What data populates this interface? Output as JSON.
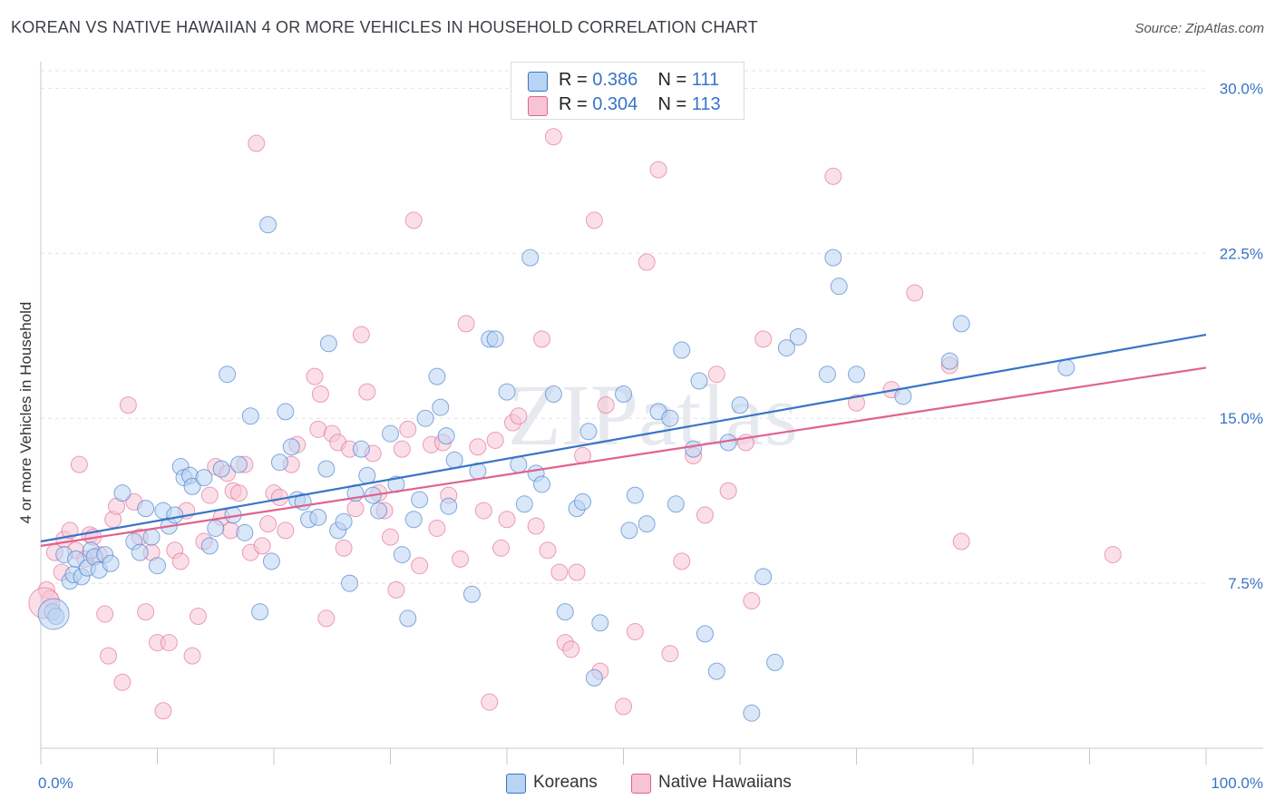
{
  "header": {
    "title": "KOREAN VS NATIVE HAWAIIAN 4 OR MORE VEHICLES IN HOUSEHOLD CORRELATION CHART",
    "source": "Source: ZipAtlas.com"
  },
  "watermark": "ZIPatlas",
  "colors": {
    "korean": "#3874c6",
    "korean_fill": "#b9d3f3",
    "hawaiian": "#e0628e",
    "hawaiian_fill": "#f7c4d5",
    "axis_label": "#3874c6",
    "grid": "#dfe3e8"
  },
  "stats_legend": {
    "rows": [
      {
        "r_label": "R =",
        "r_value": "0.386",
        "n_label": "N =",
        "n_value": "111"
      },
      {
        "r_label": "R =",
        "r_value": "0.304",
        "n_label": "N =",
        "n_value": "113"
      }
    ]
  },
  "bottom_legend": {
    "korean": "Koreans",
    "hawaiian": "Native Hawaiians"
  },
  "chart_data": {
    "type": "scatter",
    "title": "KOREAN VS NATIVE HAWAIIAN 4 OR MORE VEHICLES IN HOUSEHOLD CORRELATION CHART",
    "xlabel": "",
    "ylabel": "4 or more Vehicles in Household",
    "xlim": [
      0,
      100
    ],
    "ylim": [
      0,
      30.8
    ],
    "x_tick_labels": [
      "0.0%",
      "100.0%"
    ],
    "y_ticks": [
      7.5,
      15.0,
      22.5,
      30.0
    ],
    "y_tick_labels": [
      "7.5%",
      "15.0%",
      "22.5%",
      "30.0%"
    ],
    "grid": true,
    "legend_position": "top-center",
    "series": [
      {
        "name": "Koreans",
        "r": 0.386,
        "n": 111,
        "trend": {
          "x": [
            0,
            100
          ],
          "y": [
            9.4,
            18.8
          ]
        },
        "points": [
          [
            1.0,
            6.2
          ],
          [
            1.3,
            6.0
          ],
          [
            2.0,
            8.8
          ],
          [
            2.5,
            7.6
          ],
          [
            2.8,
            7.9
          ],
          [
            3.0,
            8.6
          ],
          [
            3.5,
            7.8
          ],
          [
            4.0,
            8.2
          ],
          [
            4.3,
            9.0
          ],
          [
            4.6,
            8.7
          ],
          [
            5.0,
            8.1
          ],
          [
            5.5,
            8.8
          ],
          [
            6.0,
            8.4
          ],
          [
            7.0,
            11.6
          ],
          [
            8.0,
            9.4
          ],
          [
            8.5,
            8.9
          ],
          [
            9.0,
            10.9
          ],
          [
            9.5,
            9.6
          ],
          [
            10.0,
            8.3
          ],
          [
            10.5,
            10.8
          ],
          [
            11.0,
            10.1
          ],
          [
            11.5,
            10.6
          ],
          [
            12.0,
            12.8
          ],
          [
            12.3,
            12.3
          ],
          [
            12.8,
            12.4
          ],
          [
            13.0,
            11.9
          ],
          [
            14.0,
            12.3
          ],
          [
            14.5,
            9.2
          ],
          [
            15.0,
            10.0
          ],
          [
            15.5,
            12.7
          ],
          [
            16.0,
            17.0
          ],
          [
            16.5,
            10.6
          ],
          [
            17.0,
            12.9
          ],
          [
            17.5,
            9.8
          ],
          [
            18.0,
            15.1
          ],
          [
            18.8,
            6.2
          ],
          [
            19.5,
            23.8
          ],
          [
            19.8,
            8.5
          ],
          [
            20.5,
            13.0
          ],
          [
            21.0,
            15.3
          ],
          [
            21.5,
            13.7
          ],
          [
            22.0,
            11.3
          ],
          [
            22.5,
            11.2
          ],
          [
            23.0,
            10.4
          ],
          [
            23.8,
            10.5
          ],
          [
            24.5,
            12.7
          ],
          [
            24.7,
            18.4
          ],
          [
            25.5,
            9.9
          ],
          [
            26.0,
            10.3
          ],
          [
            26.5,
            7.5
          ],
          [
            27.0,
            11.6
          ],
          [
            27.5,
            13.6
          ],
          [
            28.0,
            12.4
          ],
          [
            28.5,
            11.5
          ],
          [
            29.0,
            10.8
          ],
          [
            30.0,
            14.3
          ],
          [
            30.5,
            12.0
          ],
          [
            31.0,
            8.8
          ],
          [
            31.5,
            5.9
          ],
          [
            32.0,
            10.4
          ],
          [
            32.5,
            11.3
          ],
          [
            33.0,
            15.0
          ],
          [
            34.0,
            16.9
          ],
          [
            34.3,
            15.5
          ],
          [
            34.8,
            14.2
          ],
          [
            35.0,
            11.0
          ],
          [
            35.5,
            13.1
          ],
          [
            37.0,
            7.0
          ],
          [
            37.5,
            12.6
          ],
          [
            38.5,
            18.6
          ],
          [
            39.0,
            18.6
          ],
          [
            40.0,
            16.2
          ],
          [
            41.0,
            12.9
          ],
          [
            41.5,
            11.1
          ],
          [
            42.0,
            22.3
          ],
          [
            42.5,
            12.5
          ],
          [
            43.0,
            12.0
          ],
          [
            44.0,
            16.1
          ],
          [
            45.0,
            6.2
          ],
          [
            46.0,
            10.9
          ],
          [
            46.5,
            11.2
          ],
          [
            47.0,
            14.4
          ],
          [
            47.5,
            3.2
          ],
          [
            48.0,
            5.7
          ],
          [
            50.0,
            16.1
          ],
          [
            50.5,
            9.9
          ],
          [
            51.0,
            11.5
          ],
          [
            52.0,
            10.2
          ],
          [
            53.0,
            15.3
          ],
          [
            54.0,
            15.0
          ],
          [
            54.5,
            11.1
          ],
          [
            55.0,
            18.1
          ],
          [
            56.0,
            13.6
          ],
          [
            56.5,
            16.7
          ],
          [
            57.0,
            5.2
          ],
          [
            58.0,
            3.5
          ],
          [
            59.0,
            13.9
          ],
          [
            60.0,
            15.6
          ],
          [
            61.0,
            1.6
          ],
          [
            62.0,
            7.8
          ],
          [
            63.0,
            3.9
          ],
          [
            64.0,
            18.2
          ],
          [
            65.0,
            18.7
          ],
          [
            67.5,
            17.0
          ],
          [
            68.0,
            22.3
          ],
          [
            68.5,
            21.0
          ],
          [
            70.0,
            17.0
          ],
          [
            74.0,
            16.0
          ],
          [
            78.0,
            17.6
          ],
          [
            79.0,
            19.3
          ],
          [
            88.0,
            17.3
          ]
        ],
        "large_points": [
          [
            1.1,
            6.1
          ]
        ]
      },
      {
        "name": "Native Hawaiians",
        "r": 0.304,
        "n": 113,
        "trend": {
          "x": [
            0,
            100
          ],
          "y": [
            9.2,
            17.3
          ]
        },
        "points": [
          [
            0.5,
            7.2
          ],
          [
            0.8,
            6.8
          ],
          [
            1.2,
            8.9
          ],
          [
            1.8,
            8.0
          ],
          [
            2.0,
            9.5
          ],
          [
            2.5,
            9.9
          ],
          [
            3.0,
            9.0
          ],
          [
            3.3,
            12.9
          ],
          [
            3.8,
            8.6
          ],
          [
            4.2,
            9.7
          ],
          [
            4.5,
            9.6
          ],
          [
            5.0,
            8.8
          ],
          [
            5.5,
            6.1
          ],
          [
            5.8,
            4.2
          ],
          [
            6.2,
            10.4
          ],
          [
            6.5,
            11.0
          ],
          [
            7.0,
            3.0
          ],
          [
            7.5,
            15.6
          ],
          [
            8.0,
            11.2
          ],
          [
            8.5,
            9.6
          ],
          [
            9.0,
            6.2
          ],
          [
            9.5,
            8.9
          ],
          [
            10.0,
            4.8
          ],
          [
            10.5,
            1.7
          ],
          [
            11.0,
            4.8
          ],
          [
            11.5,
            9.0
          ],
          [
            12.0,
            8.5
          ],
          [
            12.5,
            10.8
          ],
          [
            13.0,
            4.2
          ],
          [
            13.5,
            6.0
          ],
          [
            14.0,
            9.4
          ],
          [
            14.5,
            11.5
          ],
          [
            15.0,
            12.8
          ],
          [
            15.5,
            10.5
          ],
          [
            16.0,
            12.5
          ],
          [
            16.3,
            9.9
          ],
          [
            16.5,
            11.7
          ],
          [
            17.0,
            11.6
          ],
          [
            17.5,
            12.9
          ],
          [
            18.0,
            8.9
          ],
          [
            18.5,
            27.5
          ],
          [
            19.0,
            9.2
          ],
          [
            19.5,
            10.2
          ],
          [
            20.0,
            11.6
          ],
          [
            20.5,
            11.4
          ],
          [
            21.0,
            9.9
          ],
          [
            21.5,
            12.9
          ],
          [
            22.0,
            13.8
          ],
          [
            23.5,
            16.9
          ],
          [
            23.8,
            14.5
          ],
          [
            24.0,
            16.1
          ],
          [
            24.5,
            5.9
          ],
          [
            25.0,
            14.3
          ],
          [
            25.5,
            13.9
          ],
          [
            26.0,
            9.1
          ],
          [
            26.5,
            13.6
          ],
          [
            27.0,
            10.9
          ],
          [
            27.5,
            18.8
          ],
          [
            28.0,
            16.2
          ],
          [
            28.5,
            13.4
          ],
          [
            29.0,
            11.6
          ],
          [
            29.5,
            10.8
          ],
          [
            30.0,
            9.6
          ],
          [
            30.5,
            7.2
          ],
          [
            31.0,
            13.6
          ],
          [
            31.5,
            14.5
          ],
          [
            32.0,
            24.0
          ],
          [
            32.5,
            8.3
          ],
          [
            33.5,
            13.8
          ],
          [
            34.0,
            10.0
          ],
          [
            34.5,
            13.9
          ],
          [
            35.0,
            11.5
          ],
          [
            36.0,
            8.6
          ],
          [
            36.5,
            19.3
          ],
          [
            37.5,
            13.7
          ],
          [
            38.0,
            10.8
          ],
          [
            38.5,
            2.1
          ],
          [
            39.0,
            14.0
          ],
          [
            39.5,
            9.1
          ],
          [
            40.0,
            10.4
          ],
          [
            40.5,
            14.8
          ],
          [
            41.0,
            15.1
          ],
          [
            42.5,
            10.1
          ],
          [
            43.0,
            18.6
          ],
          [
            43.5,
            9.0
          ],
          [
            44.0,
            27.8
          ],
          [
            44.5,
            8.0
          ],
          [
            45.0,
            4.8
          ],
          [
            45.5,
            4.5
          ],
          [
            46.0,
            8.0
          ],
          [
            46.5,
            13.3
          ],
          [
            47.5,
            24.0
          ],
          [
            48.0,
            3.5
          ],
          [
            48.5,
            15.6
          ],
          [
            50.0,
            1.9
          ],
          [
            51.0,
            5.3
          ],
          [
            52.0,
            22.1
          ],
          [
            53.0,
            26.3
          ],
          [
            54.0,
            4.3
          ],
          [
            55.0,
            8.5
          ],
          [
            56.0,
            13.3
          ],
          [
            57.0,
            10.6
          ],
          [
            58.0,
            17.0
          ],
          [
            59.0,
            11.7
          ],
          [
            60.5,
            13.9
          ],
          [
            61.0,
            6.7
          ],
          [
            62.0,
            18.6
          ],
          [
            68.0,
            26.0
          ],
          [
            70.0,
            15.7
          ],
          [
            73.0,
            16.3
          ],
          [
            75.0,
            20.7
          ],
          [
            78.0,
            17.4
          ],
          [
            79.0,
            9.4
          ],
          [
            92.0,
            8.8
          ]
        ],
        "large_points": [
          [
            0.3,
            6.6
          ]
        ]
      }
    ]
  }
}
